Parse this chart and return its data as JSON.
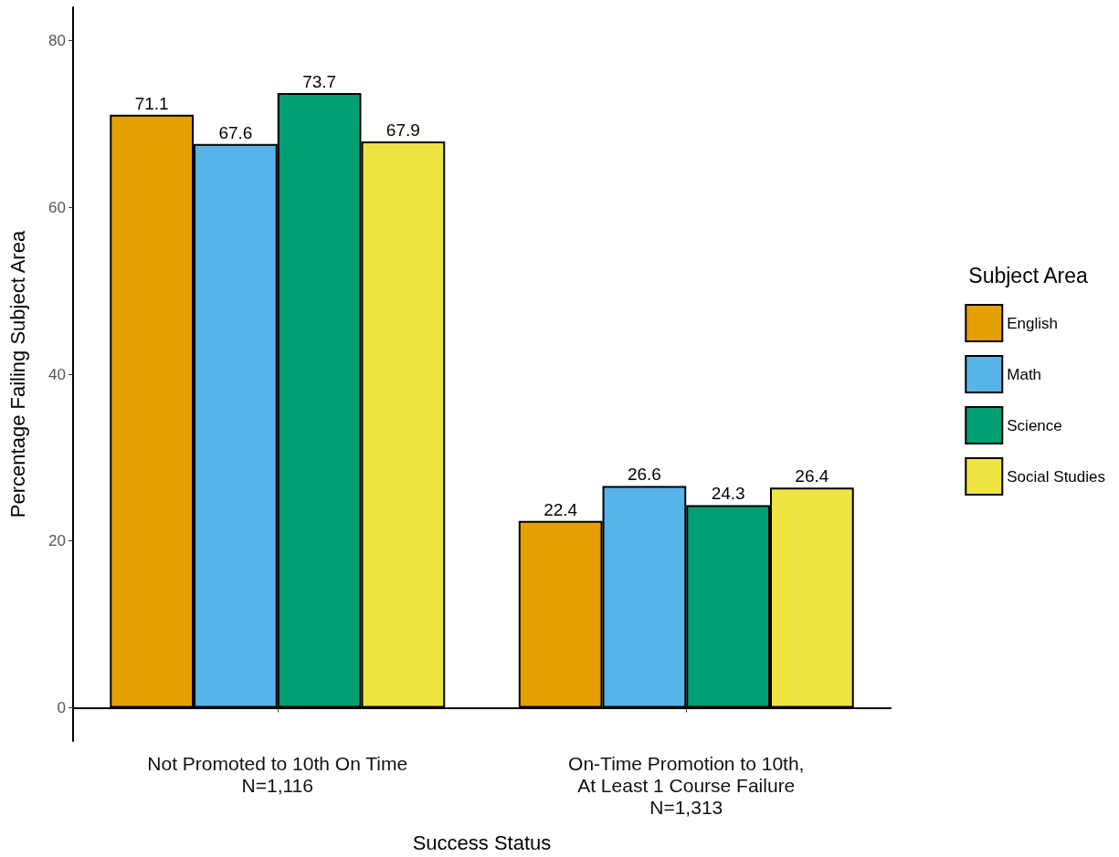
{
  "chart_data": {
    "type": "bar",
    "xlabel": "Success Status",
    "ylabel": "Percentage Failing Subject Area",
    "legend_title": "Subject Area",
    "categories": [
      "Not Promoted to 10th On Time\nN=1,116",
      "On-Time Promotion to 10th,\nAt Least 1 Course Failure\nN=1,313"
    ],
    "series": [
      {
        "name": "English",
        "color": "#e69f00",
        "values": [
          71.1,
          22.4
        ]
      },
      {
        "name": "Math",
        "color": "#56b4e9",
        "values": [
          67.6,
          26.6
        ]
      },
      {
        "name": "Science",
        "color": "#009e73",
        "values": [
          73.7,
          24.3
        ]
      },
      {
        "name": "Social Studies",
        "color": "#f0e442",
        "values": [
          67.9,
          26.4
        ]
      }
    ],
    "ylim": [
      -4,
      84
    ],
    "yticks": [
      0,
      20,
      40,
      60,
      80
    ],
    "grid": false,
    "legend": "right",
    "data_labels": true
  }
}
